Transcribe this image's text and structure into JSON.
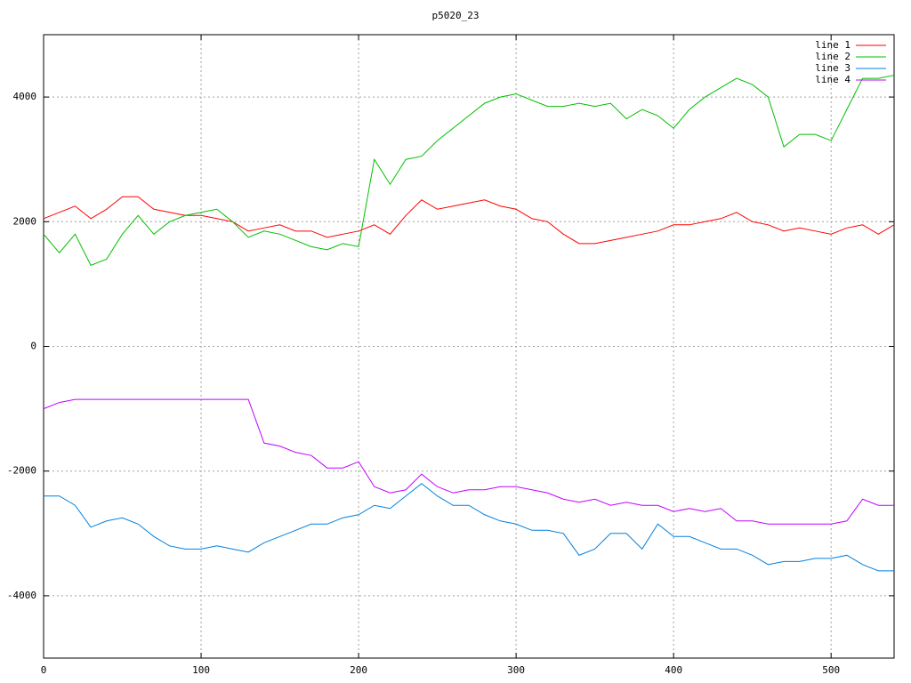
{
  "chart_data": {
    "type": "line",
    "title": "p5020_23",
    "x": [
      0,
      10,
      20,
      30,
      40,
      50,
      60,
      70,
      80,
      90,
      100,
      110,
      120,
      130,
      140,
      150,
      160,
      170,
      180,
      190,
      200,
      210,
      220,
      230,
      240,
      250,
      260,
      270,
      280,
      290,
      300,
      310,
      320,
      330,
      340,
      350,
      360,
      370,
      380,
      390,
      400,
      410,
      420,
      430,
      440,
      450,
      460,
      470,
      480,
      490,
      500,
      510,
      520,
      530,
      540
    ],
    "series": [
      {
        "name": "line 1",
        "color": "#ff0000",
        "values": [
          2050,
          2150,
          2250,
          2050,
          2200,
          2400,
          2400,
          2200,
          2150,
          2100,
          2100,
          2050,
          2000,
          1850,
          1900,
          1950,
          1850,
          1850,
          1750,
          1800,
          1850,
          1950,
          1800,
          2100,
          2350,
          2200,
          2250,
          2300,
          2350,
          2250,
          2200,
          2050,
          2000,
          1800,
          1650,
          1650,
          1700,
          1750,
          1800,
          1850,
          1950,
          1950,
          2000,
          2050,
          2150,
          2000,
          1950,
          1850,
          1900,
          1850,
          1800,
          1900,
          1950,
          1800,
          1950
        ]
      },
      {
        "name": "line 2",
        "color": "#00c000",
        "values": [
          1800,
          1500,
          1800,
          1300,
          1400,
          1800,
          2100,
          1800,
          2000,
          2100,
          2150,
          2200,
          2000,
          1750,
          1850,
          1800,
          1700,
          1600,
          1550,
          1650,
          1600,
          3000,
          2600,
          3000,
          3050,
          3300,
          3500,
          3700,
          3900,
          4000,
          4050,
          3950,
          3850,
          3850,
          3900,
          3850,
          3900,
          3650,
          3800,
          3700,
          3500,
          3800,
          4000,
          4150,
          4300,
          4200,
          4000,
          3200,
          3400,
          3400,
          3300,
          3800,
          4300,
          4300,
          4350
        ]
      },
      {
        "name": "line 3",
        "color": "#0080e0",
        "values": [
          -2400,
          -2400,
          -2550,
          -2900,
          -2800,
          -2750,
          -2850,
          -3050,
          -3200,
          -3250,
          -3250,
          -3200,
          -3250,
          -3300,
          -3150,
          -3050,
          -2950,
          -2850,
          -2850,
          -2750,
          -2700,
          -2550,
          -2600,
          -2400,
          -2200,
          -2400,
          -2550,
          -2550,
          -2700,
          -2800,
          -2850,
          -2950,
          -2950,
          -3000,
          -3350,
          -3250,
          -3000,
          -3000,
          -3250,
          -2850,
          -3050,
          -3050,
          -3150,
          -3250,
          -3250,
          -3350,
          -3500,
          -3450,
          -3450,
          -3400,
          -3400,
          -3350,
          -3500,
          -3600,
          -3600
        ]
      },
      {
        "name": "line 4",
        "color": "#c000ff",
        "values": [
          -1000,
          -900,
          -850,
          -850,
          -850,
          -850,
          -850,
          -850,
          -850,
          -850,
          -850,
          -850,
          -850,
          -850,
          -1550,
          -1600,
          -1700,
          -1750,
          -1950,
          -1950,
          -1850,
          -2250,
          -2350,
          -2300,
          -2050,
          -2250,
          -2350,
          -2300,
          -2300,
          -2250,
          -2250,
          -2300,
          -2350,
          -2450,
          -2500,
          -2450,
          -2550,
          -2500,
          -2550,
          -2550,
          -2650,
          -2600,
          -2650,
          -2600,
          -2800,
          -2800,
          -2850,
          -2850,
          -2850,
          -2850,
          -2850,
          -2800,
          -2450,
          -2550,
          -2550
        ]
      }
    ],
    "xlim": [
      0,
      540
    ],
    "xticks": [
      0,
      100,
      200,
      300,
      400,
      500
    ],
    "ylim": [
      -5000,
      5000
    ],
    "yticks": [
      -4000,
      -2000,
      0,
      2000,
      4000
    ],
    "grid": true,
    "legend": "top-right"
  }
}
